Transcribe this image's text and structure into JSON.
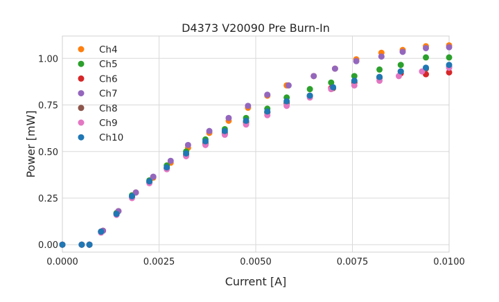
{
  "chart_data": {
    "type": "scatter",
    "title": "D4373 V20090 Pre Burn-In",
    "xlabel": "Current [A]",
    "ylabel": "Power [mW]",
    "xlim": [
      0.0,
      0.01
    ],
    "ylim": [
      -0.04,
      1.12
    ],
    "x_ticks": [
      "0.0000",
      "0.0025",
      "0.0050",
      "0.0075",
      "0.0100"
    ],
    "y_ticks": [
      "0.00",
      "0.25",
      "0.50",
      "0.75",
      "1.00"
    ],
    "grid": true,
    "legend_position": "top-left",
    "series": [
      {
        "name": "Ch4",
        "color": "#ff7f0e",
        "x": [
          0.0,
          0.0005,
          0.0007,
          0.00105,
          0.00145,
          0.0019,
          0.00235,
          0.0028,
          0.00325,
          0.0038,
          0.0043,
          0.0048,
          0.0053,
          0.0058,
          0.0065,
          0.00705,
          0.0076,
          0.00825,
          0.0088,
          0.0094,
          0.01
        ],
        "y": [
          0.0,
          0.0,
          0.0,
          0.075,
          0.18,
          0.28,
          0.36,
          0.44,
          0.52,
          0.6,
          0.665,
          0.735,
          0.8,
          0.855,
          0.905,
          0.945,
          0.995,
          1.03,
          1.045,
          1.065,
          1.07
        ]
      },
      {
        "name": "Ch5",
        "color": "#2ca02c",
        "x": [
          0.0,
          0.0005,
          0.0007,
          0.001,
          0.0014,
          0.0018,
          0.00225,
          0.0027,
          0.0032,
          0.0037,
          0.0042,
          0.00475,
          0.0053,
          0.0058,
          0.0064,
          0.00695,
          0.00755,
          0.0082,
          0.00875,
          0.0094,
          0.01
        ],
        "y": [
          0.0,
          0.0,
          0.0,
          0.07,
          0.17,
          0.265,
          0.345,
          0.425,
          0.5,
          0.565,
          0.62,
          0.68,
          0.73,
          0.79,
          0.835,
          0.87,
          0.905,
          0.94,
          0.965,
          1.005,
          1.005
        ]
      },
      {
        "name": "Ch6",
        "color": "#d62728",
        "x": [
          0.0,
          0.0005,
          0.0007,
          0.001,
          0.0014,
          0.0018,
          0.00225,
          0.0027,
          0.0032,
          0.0037,
          0.0042,
          0.00475,
          0.0053,
          0.0058,
          0.0064,
          0.00695,
          0.00755,
          0.0082,
          0.00875,
          0.0094,
          0.01
        ],
        "y": [
          0.0,
          0.0,
          0.0,
          0.07,
          0.165,
          0.255,
          0.335,
          0.41,
          0.48,
          0.54,
          0.595,
          0.655,
          0.71,
          0.76,
          0.8,
          0.84,
          0.87,
          0.895,
          0.92,
          0.915,
          0.925
        ]
      },
      {
        "name": "Ch7",
        "color": "#9467bd",
        "x": [
          0.0,
          0.0005,
          0.0007,
          0.00105,
          0.00145,
          0.0019,
          0.00235,
          0.0028,
          0.00325,
          0.0038,
          0.0043,
          0.0048,
          0.0053,
          0.00585,
          0.0065,
          0.00705,
          0.0076,
          0.00825,
          0.0088,
          0.0094,
          0.01
        ],
        "y": [
          0.0,
          0.0,
          0.0,
          0.075,
          0.18,
          0.28,
          0.365,
          0.45,
          0.535,
          0.61,
          0.68,
          0.745,
          0.805,
          0.855,
          0.905,
          0.945,
          0.985,
          1.01,
          1.035,
          1.055,
          1.06
        ]
      },
      {
        "name": "Ch8",
        "color": "#8c564b",
        "x": [
          0.0,
          0.0005,
          0.0007,
          0.001,
          0.0014,
          0.0018,
          0.00225,
          0.0027,
          0.0032,
          0.0037,
          0.0042,
          0.00475,
          0.0053,
          0.0058,
          0.0064,
          0.007,
          0.00755,
          0.0082,
          0.00875,
          0.0094,
          0.01
        ],
        "y": [
          0.0,
          0.0,
          0.0,
          0.07,
          0.165,
          0.255,
          0.335,
          0.41,
          0.48,
          0.545,
          0.6,
          0.66,
          0.71,
          0.76,
          0.795,
          0.84,
          0.875,
          0.9,
          0.93,
          0.945,
          0.955
        ]
      },
      {
        "name": "Ch9",
        "color": "#e377c2",
        "x": [
          0.0,
          0.0005,
          0.0007,
          0.001,
          0.0014,
          0.0018,
          0.00225,
          0.0027,
          0.0032,
          0.0037,
          0.0042,
          0.00475,
          0.0053,
          0.0058,
          0.0064,
          0.00695,
          0.00755,
          0.0082,
          0.0087,
          0.0093,
          0.01
        ],
        "y": [
          0.0,
          0.0,
          0.0,
          0.065,
          0.16,
          0.25,
          0.33,
          0.405,
          0.475,
          0.535,
          0.59,
          0.645,
          0.695,
          0.745,
          0.79,
          0.835,
          0.855,
          0.88,
          0.905,
          0.93,
          0.95
        ]
      },
      {
        "name": "Ch10",
        "color": "#1f77b4",
        "x": [
          0.0,
          0.0005,
          0.0007,
          0.001,
          0.0014,
          0.0018,
          0.00225,
          0.0027,
          0.0032,
          0.0037,
          0.0042,
          0.00475,
          0.0053,
          0.0058,
          0.0064,
          0.007,
          0.00755,
          0.0082,
          0.00875,
          0.0094,
          0.01
        ],
        "y": [
          0.0,
          0.0,
          0.0,
          0.07,
          0.165,
          0.26,
          0.34,
          0.415,
          0.49,
          0.555,
          0.61,
          0.665,
          0.715,
          0.77,
          0.8,
          0.845,
          0.88,
          0.9,
          0.93,
          0.95,
          0.965
        ]
      }
    ]
  }
}
